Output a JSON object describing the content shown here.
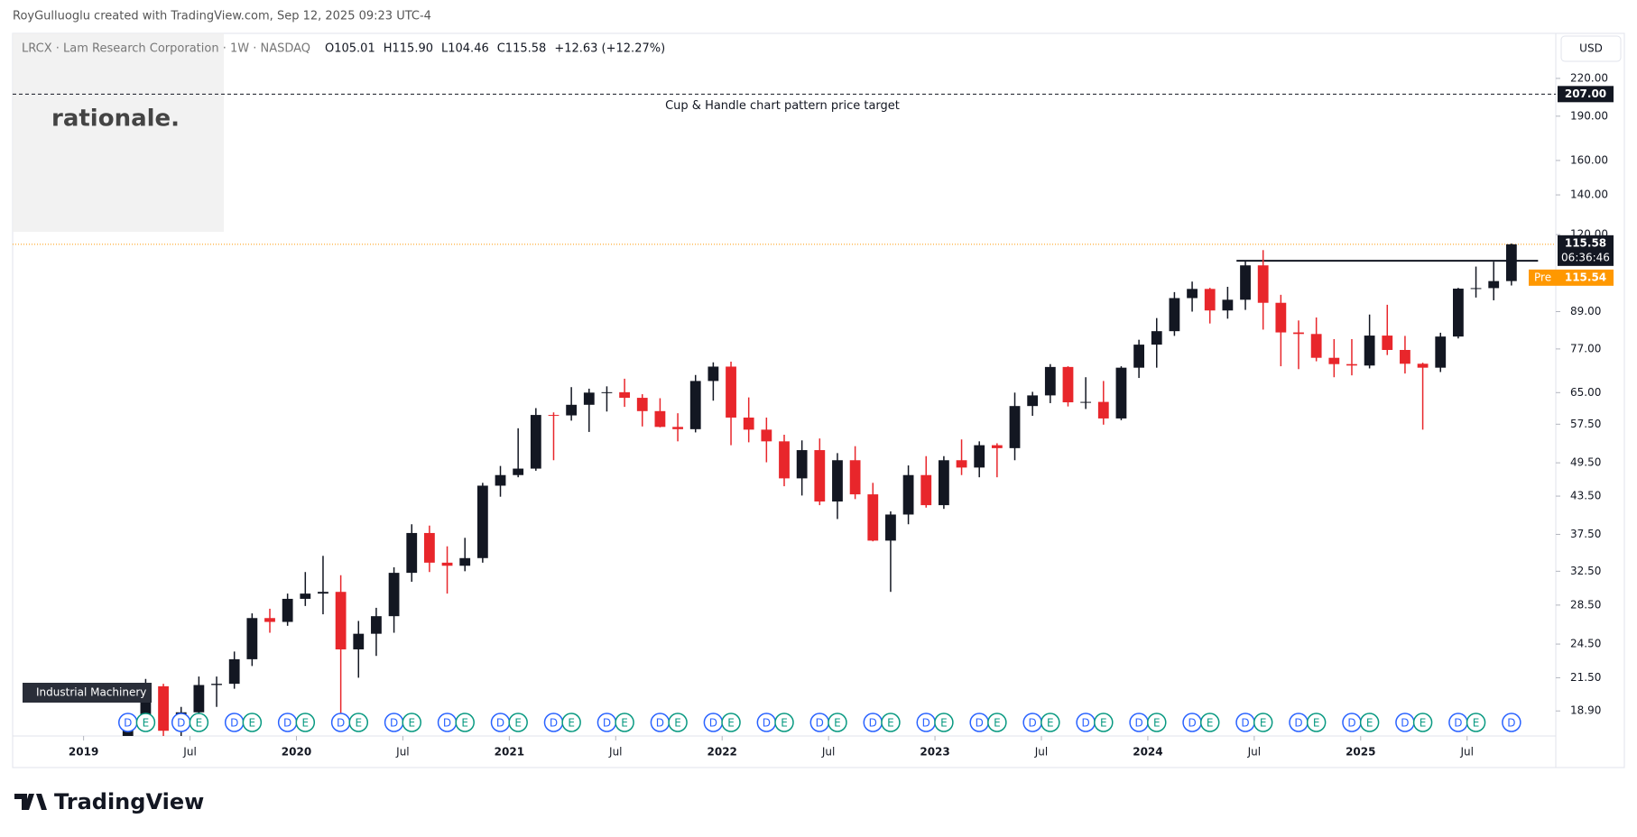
{
  "header": {
    "attribution": "RoyGulluoglu created with TradingView.com, Sep 12, 2025 09:23 UTC-4",
    "symbol": "LRCX · Lam Research Corporation · 1W · NASDAQ",
    "ohlc": [
      "O105.01",
      "H115.90",
      "L104.46",
      "C115.58",
      "+12.63 (+12.27%)"
    ],
    "logo": "rationale.",
    "currency": "USD",
    "brand": "TradingView"
  },
  "chart_data": {
    "type": "candlestick",
    "annotation": "Cup & Handle chart pattern price target",
    "sector": "Industrial Machinery",
    "log_scale": true,
    "up_color": "#131722",
    "down_color": "#e8262b",
    "xlim": [
      "2018-09",
      "2025-12"
    ],
    "xticks": [
      {
        "value": "2019-01",
        "label": "2019"
      },
      {
        "value": "2019-07",
        "label": "Jul"
      },
      {
        "value": "2020-01",
        "label": "2020"
      },
      {
        "value": "2020-07",
        "label": "Jul"
      },
      {
        "value": "2021-01",
        "label": "2021"
      },
      {
        "value": "2021-07",
        "label": "Jul"
      },
      {
        "value": "2022-01",
        "label": "2022"
      },
      {
        "value": "2022-07",
        "label": "Jul"
      },
      {
        "value": "2023-01",
        "label": "2023"
      },
      {
        "value": "2023-07",
        "label": "Jul"
      },
      {
        "value": "2024-01",
        "label": "2024"
      },
      {
        "value": "2024-07",
        "label": "Jul"
      },
      {
        "value": "2025-01",
        "label": "2025"
      },
      {
        "value": "2025-07",
        "label": "Jul"
      }
    ],
    "ylim": [
      17.15,
      262
    ],
    "yticks": [
      {
        "value": 18.9,
        "label": "18.90"
      },
      {
        "value": 21.5,
        "label": "21.50"
      },
      {
        "value": 24.5,
        "label": "24.50"
      },
      {
        "value": 28.5,
        "label": "28.50"
      },
      {
        "value": 32.5,
        "label": "32.50"
      },
      {
        "value": 37.5,
        "label": "37.50"
      },
      {
        "value": 43.5,
        "label": "43.50"
      },
      {
        "value": 49.5,
        "label": "49.50"
      },
      {
        "value": 57.5,
        "label": "57.50"
      },
      {
        "value": 65,
        "label": "65.00"
      },
      {
        "value": 77,
        "label": "77.00"
      },
      {
        "value": 89,
        "label": "89.00"
      },
      {
        "value": 120,
        "label": "120.00"
      },
      {
        "value": 140,
        "label": "140.00"
      },
      {
        "value": 160,
        "label": "160.00"
      },
      {
        "value": 190,
        "label": "190.00"
      },
      {
        "value": 220,
        "label": "220.00"
      }
    ],
    "x": [
      "2019-03",
      "2019-04",
      "2019-05",
      "2019-06",
      "2019-07",
      "2019-08",
      "2019-09",
      "2019-10",
      "2019-11",
      "2019-12",
      "2020-01",
      "2020-02",
      "2020-03",
      "2020-04",
      "2020-05",
      "2020-06",
      "2020-07",
      "2020-08",
      "2020-09",
      "2020-10",
      "2020-11",
      "2020-12",
      "2021-01",
      "2021-02",
      "2021-03",
      "2021-04",
      "2021-05",
      "2021-06",
      "2021-07",
      "2021-08",
      "2021-09",
      "2021-10",
      "2021-11",
      "2021-12",
      "2022-01",
      "2022-02",
      "2022-03",
      "2022-04",
      "2022-05",
      "2022-06",
      "2022-07",
      "2022-08",
      "2022-09",
      "2022-10",
      "2022-11",
      "2022-12",
      "2023-01",
      "2023-02",
      "2023-03",
      "2023-04",
      "2023-05",
      "2023-06",
      "2023-07",
      "2023-08",
      "2023-09",
      "2023-10",
      "2023-11",
      "2023-12",
      "2024-01",
      "2024-02",
      "2024-03",
      "2024-04",
      "2024-05",
      "2024-06",
      "2024-07",
      "2024-08",
      "2024-09",
      "2024-10",
      "2024-11",
      "2024-12",
      "2025-01",
      "2025-02",
      "2025-03",
      "2025-04",
      "2025-05",
      "2025-06",
      "2025-07",
      "2025-08",
      "2025-09"
    ],
    "open": [
      17.0,
      17.9,
      20.8,
      17.5,
      18.8,
      20.9,
      21.0,
      23.1,
      27.1,
      26.7,
      29.2,
      29.8,
      30.0,
      24.0,
      25.5,
      27.3,
      32.3,
      37.7,
      33.6,
      33.2,
      34.2,
      45.3,
      47.2,
      48.4,
      59.6,
      59.5,
      62.0,
      65.0,
      65.1,
      63.7,
      60.5,
      56.9,
      56.4,
      68.0,
      71.9,
      59.0,
      56.3,
      53.8,
      46.6,
      52.0,
      42.6,
      50.0,
      43.8,
      36.6,
      40.5,
      47.2,
      42.0,
      50.0,
      48.6,
      53.0,
      52.4,
      61.7,
      64.3,
      71.8,
      62.6,
      62.7,
      58.8,
      71.6,
      78.3,
      82.5,
      93.8,
      97.2,
      89.4,
      93.2,
      106.5,
      92.1,
      82.1,
      81.6,
      74.4,
      72.6,
      72.2,
      81.1,
      76.7,
      72.7,
      71.6,
      80.8,
      97.3,
      97.5,
      100.2
    ],
    "high": [
      18.6,
      21.4,
      21.0,
      19.2,
      21.6,
      21.6,
      23.8,
      27.6,
      28.1,
      29.8,
      32.4,
      34.5,
      32.0,
      26.8,
      28.2,
      33.0,
      39.0,
      38.8,
      35.8,
      37.0,
      45.8,
      48.9,
      56.6,
      61.2,
      60.2,
      66.4,
      66.0,
      66.6,
      68.6,
      64.6,
      63.6,
      60.0,
      69.6,
      73.1,
      73.3,
      63.8,
      59.0,
      55.2,
      54.0,
      54.4,
      51.4,
      52.8,
      45.8,
      41.0,
      49.0,
      50.8,
      50.8,
      54.2,
      53.8,
      53.4,
      65.0,
      65.2,
      72.6,
      72.0,
      69.0,
      68.0,
      72.0,
      79.8,
      86.8,
      96.0,
      100.0,
      97.6,
      98.0,
      108.2,
      113.0,
      95.0,
      86.0,
      87.0,
      80.0,
      80.0,
      88.0,
      91.4,
      81.0,
      73.0,
      82.0,
      97.6,
      106.0,
      108.0,
      115.9
    ],
    "low": [
      16.6,
      17.6,
      16.9,
      16.8,
      18.5,
      19.2,
      20.6,
      22.5,
      25.6,
      26.3,
      28.4,
      27.5,
      18.1,
      21.5,
      23.4,
      25.6,
      31.2,
      32.4,
      29.8,
      32.5,
      33.6,
      43.4,
      46.8,
      48.0,
      50.0,
      58.3,
      55.8,
      60.4,
      61.5,
      57.0,
      56.8,
      53.8,
      55.7,
      63.0,
      53.0,
      53.6,
      49.6,
      45.2,
      43.6,
      42.0,
      39.8,
      43.0,
      36.5,
      30.0,
      39.0,
      41.6,
      41.4,
      47.2,
      46.8,
      46.8,
      50.0,
      59.4,
      62.4,
      61.6,
      61.0,
      57.4,
      58.4,
      68.8,
      71.6,
      81.0,
      89.0,
      85.0,
      86.6,
      89.6,
      83.0,
      72.0,
      71.2,
      73.4,
      69.0,
      69.5,
      71.4,
      75.2,
      70.0,
      56.3,
      70.4,
      80.2,
      94.0,
      93.0,
      98.5
    ],
    "close": [
      17.9,
      20.8,
      17.5,
      18.8,
      20.9,
      21.0,
      23.1,
      27.1,
      26.7,
      29.2,
      29.8,
      30.0,
      24.0,
      25.5,
      27.3,
      32.3,
      37.7,
      33.6,
      33.2,
      34.2,
      45.3,
      47.2,
      48.4,
      59.6,
      59.5,
      62.0,
      65.0,
      65.1,
      63.7,
      60.5,
      56.9,
      56.4,
      68.0,
      71.9,
      59.0,
      56.3,
      53.8,
      46.6,
      52.0,
      42.6,
      50.0,
      43.8,
      36.6,
      40.5,
      47.2,
      42.0,
      50.0,
      48.6,
      53.0,
      52.4,
      61.7,
      64.3,
      71.8,
      62.6,
      62.7,
      58.8,
      71.6,
      78.3,
      82.5,
      93.8,
      97.2,
      89.4,
      93.2,
      106.5,
      92.1,
      82.1,
      81.6,
      74.4,
      72.6,
      72.2,
      81.1,
      76.7,
      72.7,
      71.6,
      80.8,
      97.3,
      97.5,
      100.2,
      115.58
    ],
    "target": {
      "value": 207,
      "label": "207.00"
    },
    "resistance": {
      "value": 108.4,
      "x": [
        "2024-06",
        "2025-11"
      ]
    },
    "last_price": {
      "value": 115.58,
      "label": "115.58",
      "countdown": "06:36:46",
      "color": "#131722"
    },
    "pre_market": {
      "name": "Pre",
      "value": 115.54,
      "label": "115.54",
      "color": "#ff9800"
    },
    "events": {
      "x": [
        "2019-03",
        "2019-04",
        "2019-06",
        "2019-07",
        "2019-09",
        "2019-10",
        "2019-12",
        "2020-01",
        "2020-03",
        "2020-04",
        "2020-06",
        "2020-07",
        "2020-09",
        "2020-10",
        "2020-12",
        "2021-01",
        "2021-03",
        "2021-04",
        "2021-06",
        "2021-07",
        "2021-09",
        "2021-10",
        "2021-12",
        "2022-01",
        "2022-03",
        "2022-04",
        "2022-06",
        "2022-07",
        "2022-09",
        "2022-10",
        "2022-12",
        "2023-01",
        "2023-03",
        "2023-04",
        "2023-06",
        "2023-07",
        "2023-09",
        "2023-10",
        "2023-12",
        "2024-01",
        "2024-03",
        "2024-04",
        "2024-06",
        "2024-07",
        "2024-09",
        "2024-10",
        "2024-12",
        "2025-01",
        "2025-03",
        "2025-04",
        "2025-06",
        "2025-07",
        "2025-09"
      ],
      "labels": [
        "D",
        "E",
        "D",
        "E",
        "D",
        "E",
        "D",
        "E",
        "D",
        "E",
        "D",
        "E",
        "D",
        "E",
        "D",
        "E",
        "D",
        "E",
        "D",
        "E",
        "D",
        "E",
        "D",
        "E",
        "D",
        "E",
        "D",
        "E",
        "D",
        "E",
        "D",
        "E",
        "D",
        "E",
        "D",
        "E",
        "D",
        "E",
        "D",
        "E",
        "D",
        "E",
        "D",
        "E",
        "D",
        "E",
        "D",
        "E",
        "D",
        "E",
        "D",
        "E",
        "D"
      ]
    }
  }
}
